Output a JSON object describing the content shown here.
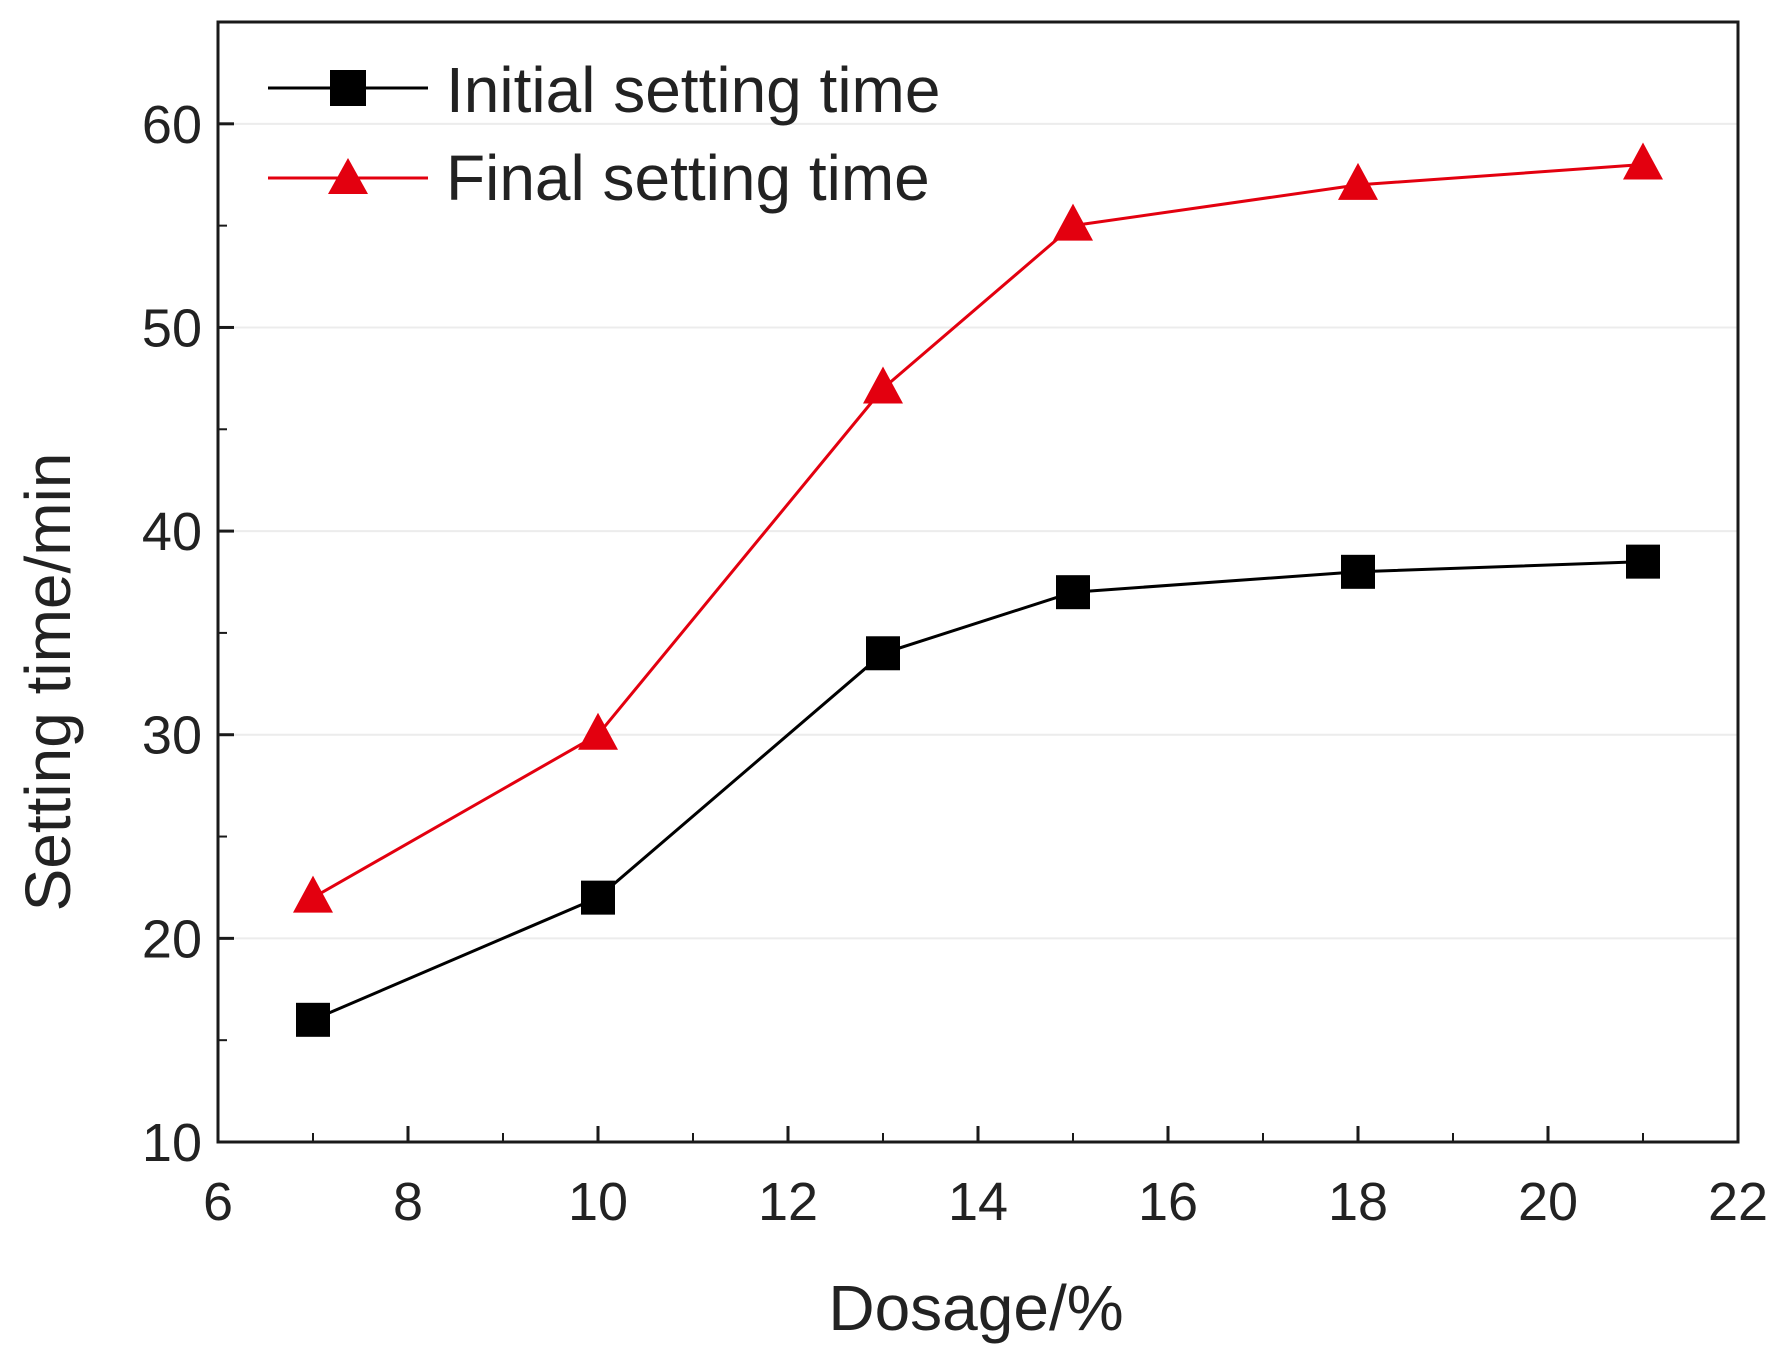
{
  "chart_data": {
    "type": "line",
    "title": "",
    "xlabel": "Dosage/%",
    "ylabel": "Setting time/min",
    "xlim": [
      6,
      22
    ],
    "ylim": [
      10,
      65
    ],
    "xticks": [
      6,
      8,
      10,
      12,
      14,
      16,
      18,
      20,
      22
    ],
    "yticks": [
      10,
      20,
      30,
      40,
      50,
      60
    ],
    "x": [
      7,
      10,
      13,
      15,
      18,
      21
    ],
    "grid": true,
    "legend_position": "top-left",
    "series": [
      {
        "name": "Initial setting time",
        "marker": "square",
        "color": "#000000",
        "values": [
          16,
          22,
          34,
          37,
          38,
          38.5
        ]
      },
      {
        "name": "Final setting time",
        "marker": "triangle",
        "color": "#e3000f",
        "values": [
          22,
          30,
          47,
          55,
          57,
          58
        ]
      }
    ]
  }
}
